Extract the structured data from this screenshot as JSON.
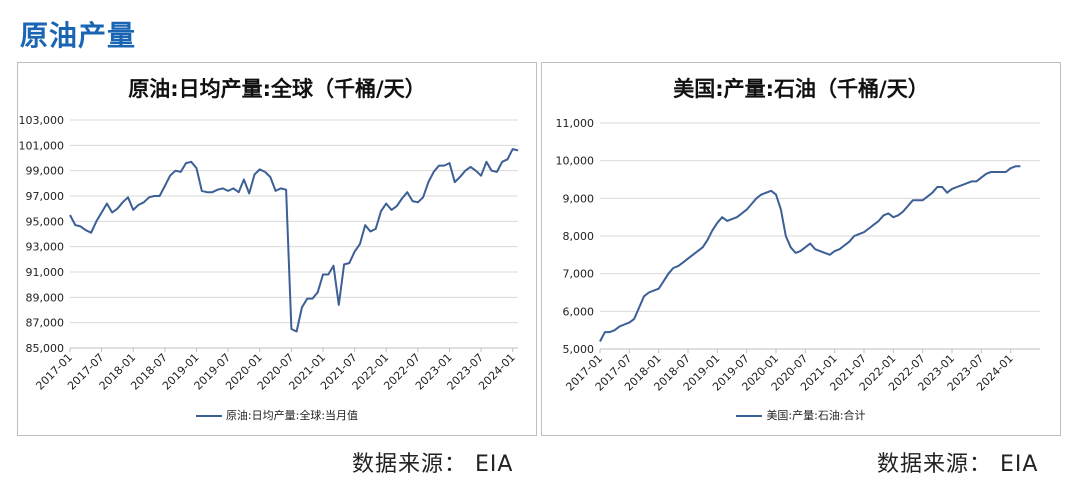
{
  "page": {
    "title": "原油产量",
    "source_left": "数据来源：  EIA",
    "source_right": "数据来源：  EIA"
  },
  "chart_data": [
    {
      "type": "line",
      "title": "原油:日均产量:全球（千桶/天）",
      "xlabel": "",
      "ylabel": "",
      "ylim": [
        85000,
        103000
      ],
      "yticks": [
        "85,000",
        "87,000",
        "89,000",
        "91,000",
        "93,000",
        "95,000",
        "97,000",
        "99,000",
        "101,000",
        "103,000"
      ],
      "ytick_values": [
        85000,
        87000,
        89000,
        91000,
        93000,
        95000,
        97000,
        99000,
        101000,
        103000
      ],
      "xlim": [
        0,
        85
      ],
      "xticks": [
        "2017-01",
        "2017-07",
        "2018-01",
        "2018-07",
        "2019-01",
        "2019-07",
        "2020-01",
        "2020-07",
        "2021-01",
        "2021-07",
        "2022-01",
        "2022-07",
        "2023-01",
        "2023-07",
        "2024-01"
      ],
      "xtick_index": [
        0,
        6,
        12,
        18,
        24,
        30,
        36,
        42,
        48,
        54,
        60,
        66,
        72,
        78,
        84
      ],
      "grid": true,
      "legend_position": "bottom",
      "series": [
        {
          "name": "原油:日均产量:全球:当月值",
          "color": "#3c5f96",
          "values": [
            95500,
            94700,
            94600,
            94300,
            94100,
            95000,
            95700,
            96400,
            95700,
            96000,
            96500,
            96900,
            95900,
            96300,
            96500,
            96900,
            97000,
            97000,
            97800,
            98600,
            99000,
            98900,
            99600,
            99700,
            99200,
            97400,
            97300,
            97300,
            97500,
            97600,
            97400,
            97600,
            97300,
            98300,
            97200,
            98700,
            99100,
            98900,
            98500,
            97400,
            97600,
            97500,
            86500,
            86300,
            88200,
            88900,
            88900,
            89400,
            90800,
            90800,
            91500,
            88400,
            91600,
            91700,
            92600,
            93200,
            94700,
            94200,
            94400,
            95800,
            96400,
            95900,
            96200,
            96800,
            97300,
            96600,
            96500,
            96900,
            98100,
            98900,
            99400,
            99400,
            99600,
            98100,
            98500,
            99000,
            99300,
            99000,
            98600,
            99700,
            99000,
            98900,
            99700,
            99900,
            100700,
            100600
          ]
        }
      ]
    },
    {
      "type": "line",
      "title": "美国:产量:石油（千桶/天）",
      "xlabel": "",
      "ylabel": "",
      "ylim": [
        5000,
        11000
      ],
      "yticks": [
        "5,000",
        "6,000",
        "7,000",
        "8,000",
        "9,000",
        "10,000",
        "11,000"
      ],
      "ytick_values": [
        5000,
        6000,
        7000,
        8000,
        9000,
        10000,
        11000
      ],
      "xlim": [
        0,
        90
      ],
      "xticks": [
        "2017-01",
        "2017-07",
        "2018-01",
        "2018-07",
        "2019-01",
        "2019-07",
        "2020-01",
        "2020-07",
        "2021-01",
        "2021-07",
        "2022-01",
        "2022-07",
        "2023-01",
        "2023-07",
        "2024-01"
      ],
      "xtick_index": [
        0,
        6,
        12,
        18,
        24,
        30,
        36,
        42,
        48,
        54,
        60,
        66,
        72,
        78,
        84
      ],
      "grid": true,
      "legend_position": "bottom",
      "series": [
        {
          "name": "美国:产量:石油:合计",
          "color": "#3c5f96",
          "values": [
            5200,
            5450,
            5450,
            5500,
            5600,
            5650,
            5700,
            5800,
            6100,
            6400,
            6500,
            6550,
            6600,
            6800,
            7000,
            7150,
            7200,
            7300,
            7400,
            7500,
            7600,
            7700,
            7900,
            8150,
            8350,
            8500,
            8400,
            8450,
            8500,
            8600,
            8700,
            8850,
            9000,
            9100,
            9150,
            9200,
            9100,
            8700,
            8000,
            7700,
            7550,
            7600,
            7700,
            7800,
            7650,
            7600,
            7550,
            7500,
            7600,
            7650,
            7750,
            7850,
            8000,
            8050,
            8100,
            8200,
            8300,
            8400,
            8550,
            8600,
            8500,
            8550,
            8650,
            8800,
            8950,
            8950,
            8950,
            9050,
            9150,
            9300,
            9300,
            9150,
            9250,
            9300,
            9350,
            9400,
            9450,
            9450,
            9550,
            9650,
            9700,
            9700,
            9700,
            9700,
            9800,
            9850,
            9850
          ]
        }
      ]
    }
  ]
}
